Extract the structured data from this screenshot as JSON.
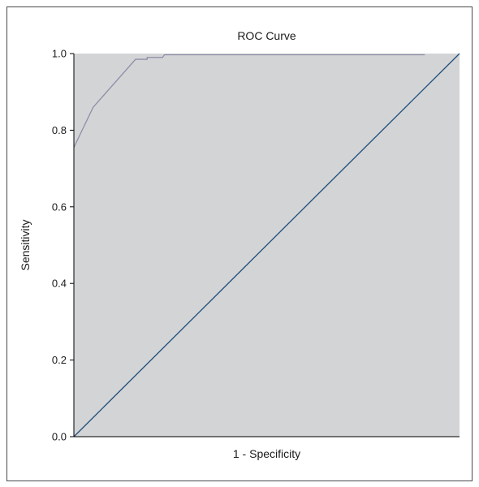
{
  "chart_data": {
    "type": "line",
    "title": "ROC Curve",
    "xlabel": "1 - Specificity",
    "ylabel": "Sensitivity",
    "xlim": [
      0,
      1
    ],
    "ylim": [
      0,
      1
    ],
    "y_ticks": [
      "0.0",
      "0.2",
      "0.4",
      "0.6",
      "0.8",
      "1.0"
    ],
    "x_ticks_shown": false,
    "grid": false,
    "legend": "none",
    "series": [
      {
        "x": [
          0.0,
          0.05,
          0.16,
          0.19,
          0.19,
          0.23,
          0.235,
          0.91
        ],
        "y": [
          0.755,
          0.86,
          0.985,
          0.985,
          0.99,
          0.99,
          0.997,
          0.997
        ]
      },
      {
        "x": [
          0,
          1
        ],
        "y": [
          0,
          1
        ]
      }
    ],
    "colors": {
      "plot_background": "#d3d4d6",
      "roc_line": "#8e8ea8",
      "reference_line": "#1f4e7a",
      "axis": "#000000"
    }
  }
}
